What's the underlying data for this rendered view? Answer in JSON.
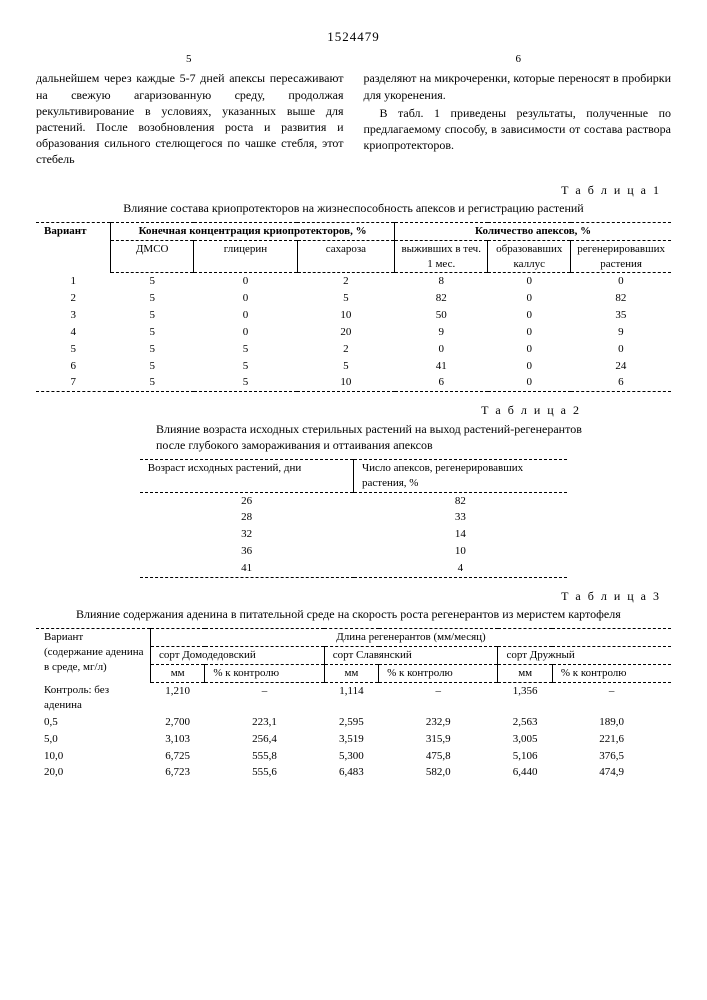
{
  "patent_number": "1524479",
  "col_left_no": "5",
  "col_right_no": "6",
  "para_left": "дальнейшем через каждые 5-7 дней апексы пересаживают на свежую агаризованную среду, продолжая рекультивирование в условиях, указанных выше для растений. После возобновления роста и развития и образования сильного стелющегося по чашке стебля, этот стебель",
  "para_right_1": "разделяют на микрочеренки, которые переносят в пробирки для укоренения.",
  "para_right_2": "В табл. 1 приведены результаты, полученные по предлагаемому способу, в зависимости от состава раствора криопротекторов.",
  "table1_label": "Т а б л и ц а 1",
  "table1_caption": "Влияние состава криопротекторов на жизнеспособность апексов и регистрацию растений",
  "t1": {
    "h1": "Вариант",
    "h2": "Конечная концентрация криопротекторов, %",
    "h3": "Количество апексов, %",
    "s1": "ДМСО",
    "s2": "глицерин",
    "s3": "сахароза",
    "s4": "выживших в теч. 1 мес.",
    "s5": "образовавших каллус",
    "s6": "регенерировавших растения",
    "rows": [
      [
        "1",
        "5",
        "0",
        "2",
        "8",
        "0",
        "0"
      ],
      [
        "2",
        "5",
        "0",
        "5",
        "82",
        "0",
        "82"
      ],
      [
        "3",
        "5",
        "0",
        "10",
        "50",
        "0",
        "35"
      ],
      [
        "4",
        "5",
        "0",
        "20",
        "9",
        "0",
        "9"
      ],
      [
        "5",
        "5",
        "5",
        "2",
        "0",
        "0",
        "0"
      ],
      [
        "6",
        "5",
        "5",
        "5",
        "41",
        "0",
        "24"
      ],
      [
        "7",
        "5",
        "5",
        "10",
        "6",
        "0",
        "6"
      ]
    ]
  },
  "table2_label": "Т а б л и ц а 2",
  "table2_caption": "Влияние возраста исходных стерильных растений на выход растений-регенерантов после глубокого замораживания и оттаивания апексов",
  "t2": {
    "h1": "Возраст исходных растений, дни",
    "h2": "Число апексов, регенерировавших растения, %",
    "rows": [
      [
        "26",
        "82"
      ],
      [
        "28",
        "33"
      ],
      [
        "32",
        "14"
      ],
      [
        "36",
        "10"
      ],
      [
        "41",
        "4"
      ]
    ]
  },
  "table3_label": "Т а б л и ц а 3",
  "table3_caption": "Влияние содержания аденина в питательной среде на скорость роста регенерантов из меристем картофеля",
  "t3": {
    "col0": "Вариант (содержание аденина в среде, мг/л)",
    "super": "Длина регенерантов (мм/месяц)",
    "v1": "сорт Домодедовский",
    "v2": "сорт Славянский",
    "v3": "сорт Дружный",
    "mm": "мм",
    "pct": "% к контролю",
    "rows": [
      [
        "Контроль: без аденина",
        "1,210",
        "–",
        "1,114",
        "–",
        "1,356",
        "–"
      ],
      [
        "0,5",
        "2,700",
        "223,1",
        "2,595",
        "232,9",
        "2,563",
        "189,0"
      ],
      [
        "5,0",
        "3,103",
        "256,4",
        "3,519",
        "315,9",
        "3,005",
        "221,6"
      ],
      [
        "10,0",
        "6,725",
        "555,8",
        "5,300",
        "475,8",
        "5,106",
        "376,5"
      ],
      [
        "20,0",
        "6,723",
        "555,6",
        "6,483",
        "582,0",
        "6,440",
        "474,9"
      ]
    ]
  }
}
